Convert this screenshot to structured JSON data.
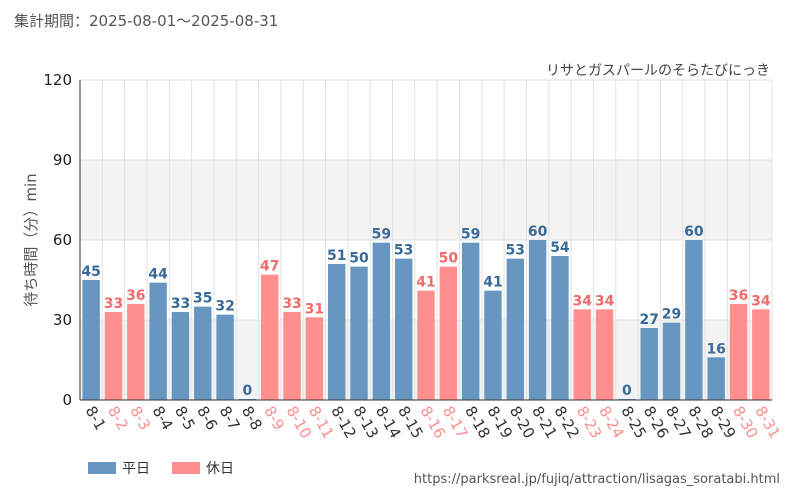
{
  "header": {
    "period_label": "集計期間：2025-08-01～2025-08-31",
    "subtitle": "リサとガスパールのそらたびにっき"
  },
  "footer": {
    "url": "https://parksreal.jp/fujiq/attraction/lisagas_soratabi.html"
  },
  "legend": {
    "weekday_label": "平日",
    "holiday_label": "休日"
  },
  "colors": {
    "weekday": "#6797c1",
    "holiday": "#ff8f8f",
    "weekday_label": "#3a6a9a",
    "holiday_label": "#f06b6b",
    "band": "#f3f3f3",
    "grid": "#e2e2e2"
  },
  "chart_data": {
    "type": "bar",
    "ylabel": "待ち時間（分）min",
    "ylim": [
      0,
      120
    ],
    "yticks": [
      0,
      30,
      60,
      90,
      120
    ],
    "grid": true,
    "legend_position": "bottom-left",
    "categories": [
      "8-1",
      "8-2",
      "8-3",
      "8-4",
      "8-5",
      "8-6",
      "8-7",
      "8-8",
      "8-9",
      "8-10",
      "8-11",
      "8-12",
      "8-13",
      "8-14",
      "8-15",
      "8-16",
      "8-17",
      "8-18",
      "8-19",
      "8-20",
      "8-21",
      "8-22",
      "8-23",
      "8-24",
      "8-25",
      "8-26",
      "8-27",
      "8-28",
      "8-29",
      "8-30",
      "8-31"
    ],
    "values": [
      45,
      33,
      36,
      44,
      33,
      35,
      32,
      0,
      47,
      33,
      31,
      51,
      50,
      59,
      53,
      41,
      50,
      59,
      41,
      53,
      60,
      54,
      34,
      34,
      0,
      27,
      29,
      60,
      16,
      36,
      34
    ],
    "day_type": [
      "平日",
      "休日",
      "休日",
      "平日",
      "平日",
      "平日",
      "平日",
      "平日",
      "休日",
      "休日",
      "休日",
      "平日",
      "平日",
      "平日",
      "平日",
      "休日",
      "休日",
      "平日",
      "平日",
      "平日",
      "平日",
      "平日",
      "休日",
      "休日",
      "平日",
      "平日",
      "平日",
      "平日",
      "平日",
      "休日",
      "休日"
    ]
  }
}
